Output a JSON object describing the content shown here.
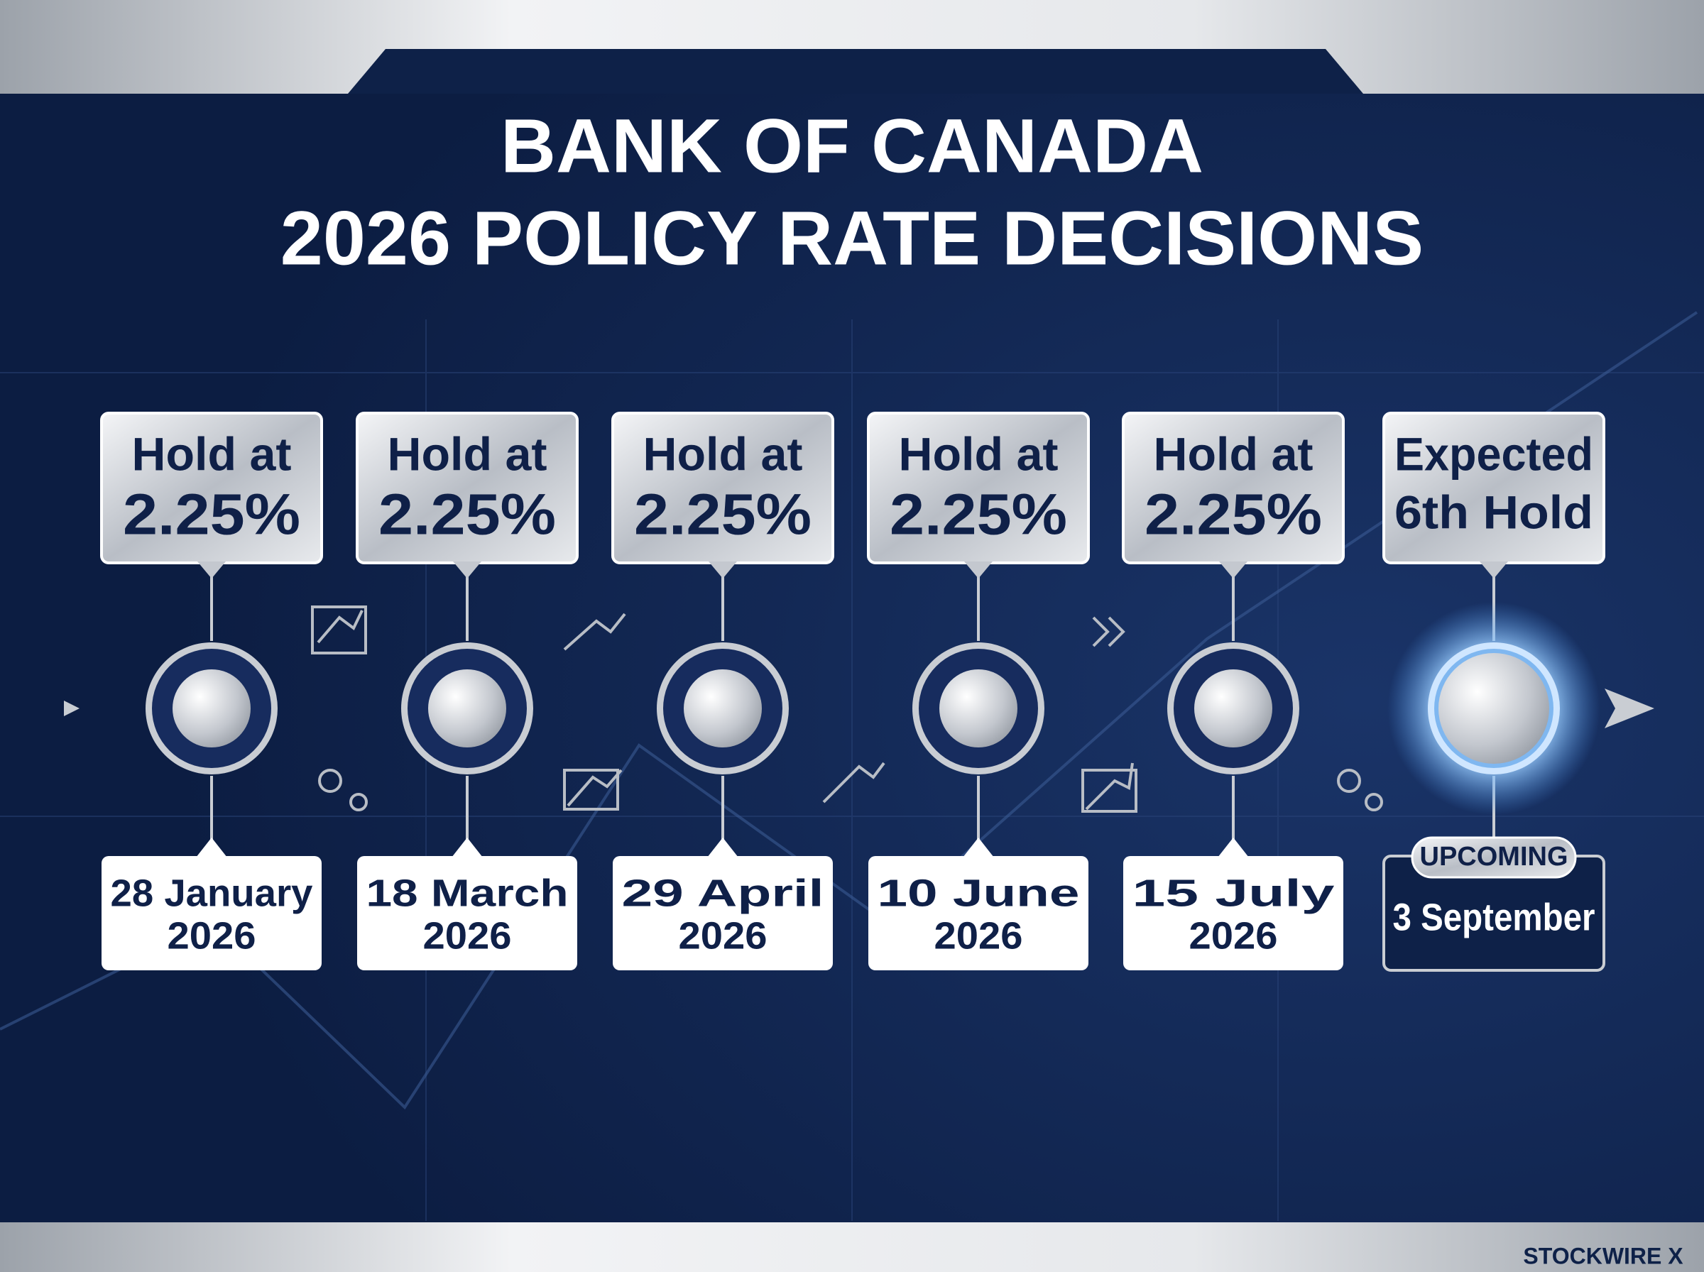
{
  "header": {
    "title": [
      "BANK OF CANADA",
      "2026 POLICY RATE DECISIONS"
    ]
  },
  "timeline": {
    "items": [
      {
        "status": [
          "Hold at",
          "2.25%"
        ],
        "date": [
          "28 January",
          "2026"
        ]
      },
      {
        "status": [
          "Hold at",
          "2.25%"
        ],
        "date": [
          "18 March",
          "2026"
        ]
      },
      {
        "status": [
          "Hold at",
          "2.25%"
        ],
        "date": [
          "29 April",
          "2026"
        ]
      },
      {
        "status": [
          "Hold at",
          "2.25%"
        ],
        "date": [
          "10 June",
          "2026"
        ]
      },
      {
        "status": [
          "Hold at",
          "2.25%"
        ],
        "date": [
          "15 July",
          "2026"
        ]
      },
      {
        "status": [
          "Expected",
          "6th Hold"
        ],
        "badge": "UPCOMING",
        "date": [
          "3 September"
        ]
      }
    ]
  },
  "footer": {
    "brand": "STOCKWIRE X"
  }
}
